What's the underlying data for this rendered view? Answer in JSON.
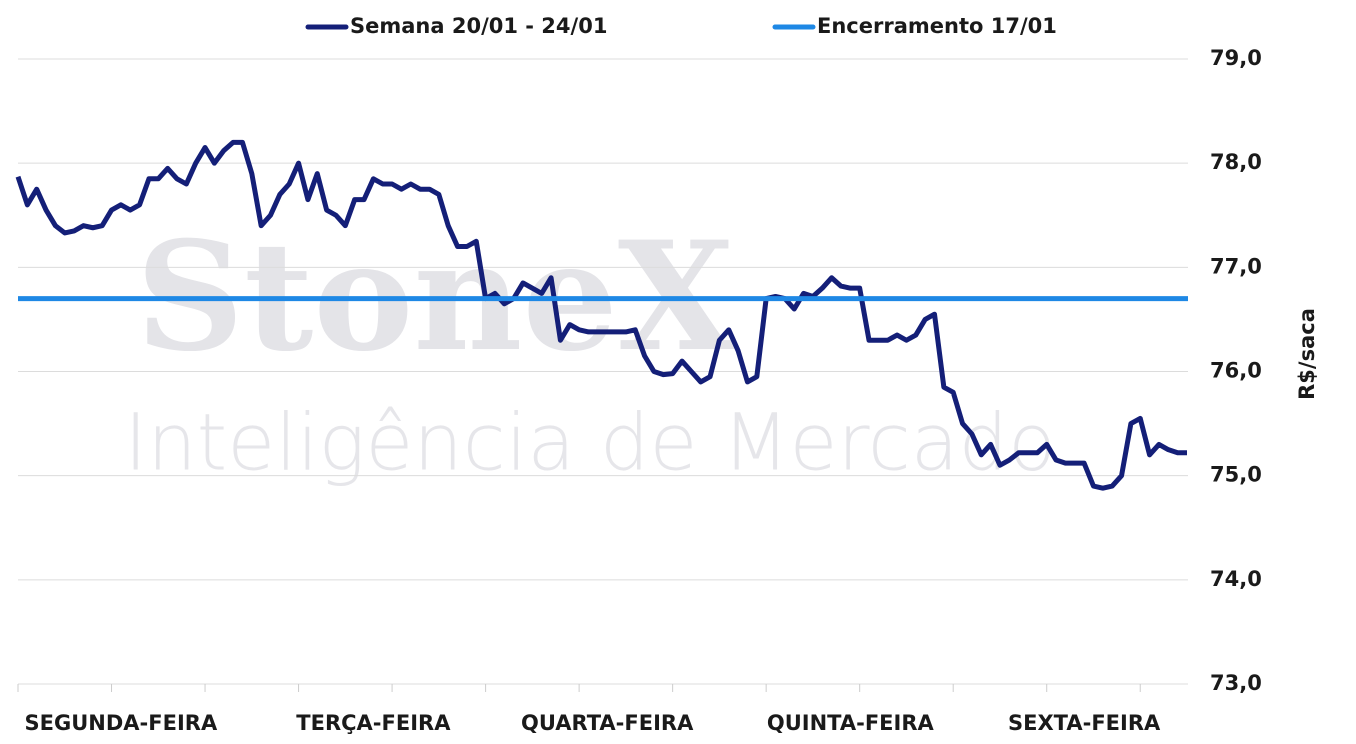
{
  "chart_data": {
    "type": "line",
    "watermark": {
      "logo": "StoneX",
      "tagline": "Inteligência de Mercado"
    },
    "y_label": "R$/saca",
    "ylim": [
      73,
      79
    ],
    "yticks": [
      {
        "value": 73,
        "label": "73,0"
      },
      {
        "value": 74,
        "label": "74,0"
      },
      {
        "value": 75,
        "label": "75,0"
      },
      {
        "value": 76,
        "label": "76,0"
      },
      {
        "value": 77,
        "label": "77,0"
      },
      {
        "value": 78,
        "label": "78,0"
      },
      {
        "value": 79,
        "label": "79,0"
      }
    ],
    "grid": true,
    "categories": [
      null,
      null,
      null,
      null,
      null,
      null,
      null,
      null,
      null,
      null,
      null,
      "SEGUNDA-FEIRA",
      null,
      null,
      null,
      null,
      null,
      null,
      null,
      null,
      null,
      null,
      null,
      null,
      null,
      null,
      null,
      null,
      null,
      null,
      null,
      null,
      null,
      null,
      null,
      null,
      null,
      null,
      "TERÇA-FEIRA",
      null,
      null,
      null,
      null,
      null,
      null,
      null,
      null,
      null,
      null,
      null,
      null,
      null,
      null,
      null,
      null,
      null,
      null,
      null,
      null,
      null,
      null,
      null,
      null,
      "QUARTA-FEIRA",
      null,
      null,
      null,
      null,
      null,
      null,
      null,
      null,
      null,
      null,
      null,
      null,
      null,
      null,
      null,
      null,
      null,
      null,
      null,
      null,
      null,
      null,
      null,
      null,
      null,
      "QUINTA-FEIRA",
      null,
      null,
      null,
      null,
      null,
      null,
      null,
      null,
      null,
      null,
      null,
      null,
      null,
      null,
      null,
      null,
      null,
      null,
      null,
      null,
      null,
      null,
      null,
      null,
      "SEXTA-FEIRA",
      null,
      null,
      null,
      null,
      null,
      null,
      null,
      null,
      null,
      null,
      null
    ],
    "series": [
      {
        "name": "Semana 20/01 - 24/01",
        "color": "#141f78",
        "values": [
          77.87,
          77.6,
          77.75,
          77.55,
          77.4,
          77.33,
          77.35,
          77.4,
          77.38,
          77.4,
          77.55,
          77.6,
          77.55,
          77.6,
          77.85,
          77.85,
          77.95,
          77.85,
          77.8,
          78.0,
          78.15,
          78.0,
          78.12,
          78.2,
          78.2,
          77.9,
          77.4,
          77.5,
          77.7,
          77.8,
          78.0,
          77.65,
          77.9,
          77.55,
          77.5,
          77.4,
          77.65,
          77.65,
          77.85,
          77.8,
          77.8,
          77.75,
          77.8,
          77.75,
          77.75,
          77.7,
          77.4,
          77.2,
          77.2,
          77.25,
          76.7,
          76.75,
          76.65,
          76.7,
          76.85,
          76.8,
          76.75,
          76.9,
          76.3,
          76.45,
          76.4,
          76.38,
          76.38,
          76.38,
          76.38,
          76.38,
          76.4,
          76.15,
          76.0,
          75.97,
          75.98,
          76.1,
          76.0,
          75.9,
          75.95,
          76.3,
          76.4,
          76.2,
          75.9,
          75.95,
          76.7,
          76.72,
          76.7,
          76.6,
          76.75,
          76.72,
          76.8,
          76.9,
          76.82,
          76.8,
          76.8,
          76.3,
          76.3,
          76.3,
          76.35,
          76.3,
          76.35,
          76.5,
          76.55,
          75.85,
          75.8,
          75.5,
          75.4,
          75.2,
          75.3,
          75.1,
          75.15,
          75.22,
          75.22,
          75.22,
          75.3,
          75.15,
          75.12,
          75.12,
          75.12,
          74.9,
          74.88,
          74.9,
          75.0,
          75.5,
          75.55,
          75.2,
          75.3,
          75.25,
          75.22,
          75.22
        ]
      },
      {
        "name": "Encerramento 17/01",
        "color": "#1e88e5",
        "value": 76.7
      }
    ]
  }
}
